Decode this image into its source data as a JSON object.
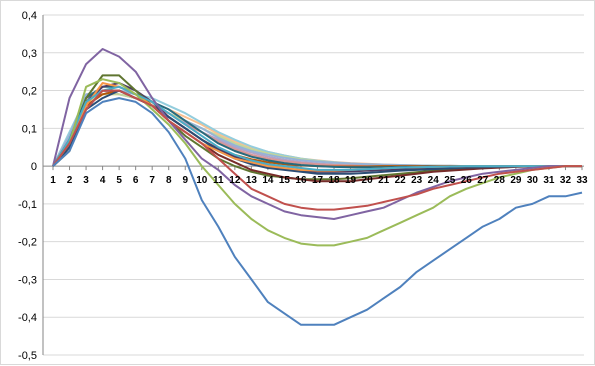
{
  "chart_data": {
    "type": "line",
    "title": "",
    "xlabel": "",
    "ylabel": "",
    "ylim": [
      -0.5,
      0.4
    ],
    "y_tick_step": 0.1,
    "y_tick_labels": [
      "0,4",
      "0,3",
      "0,2",
      "0,1",
      "0",
      "-0,1",
      "-0,2",
      "-0,3",
      "-0,4",
      "-0,5"
    ],
    "x": [
      1,
      2,
      3,
      4,
      5,
      6,
      7,
      8,
      9,
      10,
      11,
      12,
      13,
      14,
      15,
      16,
      17,
      18,
      19,
      20,
      21,
      22,
      23,
      24,
      25,
      26,
      27,
      28,
      29,
      30,
      31,
      32,
      33
    ],
    "x_tick_labels": [
      "1",
      "2",
      "3",
      "4",
      "5",
      "6",
      "7",
      "8",
      "9",
      "10",
      "11",
      "12",
      "13",
      "14",
      "15",
      "16",
      "17",
      "18",
      "19",
      "20",
      "21",
      "22",
      "23",
      "24",
      "25",
      "26",
      "27",
      "28",
      "29",
      "30",
      "31",
      "32",
      "33"
    ],
    "grid": "horizontal",
    "legend": "none",
    "series": [
      {
        "color": "#4f81bd",
        "values": [
          0,
          0.04,
          0.14,
          0.17,
          0.18,
          0.17,
          0.14,
          0.09,
          0.02,
          -0.09,
          -0.16,
          -0.24,
          -0.3,
          -0.36,
          -0.39,
          -0.42,
          -0.42,
          -0.42,
          -0.4,
          -0.38,
          -0.35,
          -0.32,
          -0.28,
          -0.25,
          -0.22,
          -0.19,
          -0.16,
          -0.14,
          -0.11,
          -0.1,
          -0.08,
          -0.08,
          -0.07
        ]
      },
      {
        "color": "#c0504d",
        "values": [
          0,
          0.06,
          0.15,
          0.2,
          0.2,
          0.18,
          0.16,
          0.12,
          0.09,
          0.06,
          0.02,
          -0.02,
          -0.06,
          -0.08,
          -0.1,
          -0.11,
          -0.115,
          -0.115,
          -0.11,
          -0.105,
          -0.095,
          -0.085,
          -0.075,
          -0.06,
          -0.05,
          -0.04,
          -0.03,
          -0.02,
          -0.015,
          -0.01,
          -0.005,
          0,
          0
        ]
      },
      {
        "color": "#9bbb59",
        "values": [
          0,
          0.06,
          0.21,
          0.23,
          0.22,
          0.19,
          0.15,
          0.11,
          0.06,
          0.0,
          -0.05,
          -0.1,
          -0.14,
          -0.17,
          -0.19,
          -0.205,
          -0.21,
          -0.21,
          -0.2,
          -0.19,
          -0.17,
          -0.15,
          -0.13,
          -0.11,
          -0.08,
          -0.06,
          -0.045,
          -0.03,
          -0.02,
          -0.01,
          -0.005,
          0,
          0
        ]
      },
      {
        "color": "#8064a2",
        "values": [
          0,
          0.18,
          0.27,
          0.31,
          0.29,
          0.25,
          0.18,
          0.12,
          0.07,
          0.02,
          -0.01,
          -0.05,
          -0.08,
          -0.1,
          -0.12,
          -0.13,
          -0.135,
          -0.14,
          -0.13,
          -0.12,
          -0.11,
          -0.09,
          -0.07,
          -0.055,
          -0.04,
          -0.03,
          -0.02,
          -0.015,
          -0.01,
          -0.005,
          0,
          0,
          0
        ]
      },
      {
        "color": "#4bacc6",
        "values": [
          0,
          0.07,
          0.17,
          0.2,
          0.21,
          0.19,
          0.17,
          0.14,
          0.11,
          0.08,
          0.05,
          0.03,
          0.015,
          0.005,
          0,
          -0.005,
          -0.01,
          -0.01,
          -0.01,
          -0.008,
          -0.006,
          -0.004,
          -0.003,
          -0.002,
          -0.001,
          0,
          0,
          0,
          0,
          0,
          0,
          0,
          0
        ]
      },
      {
        "color": "#f79646",
        "values": [
          0,
          0.06,
          0.16,
          0.22,
          0.21,
          0.19,
          0.16,
          0.12,
          0.09,
          0.06,
          0.04,
          0.02,
          0.01,
          0,
          -0.005,
          -0.01,
          -0.012,
          -0.012,
          -0.01,
          -0.008,
          -0.006,
          -0.004,
          -0.003,
          -0.002,
          -0.001,
          0,
          0,
          0,
          0,
          0,
          0,
          0,
          0
        ]
      },
      {
        "color": "#2c4d75",
        "values": [
          0,
          0.05,
          0.15,
          0.18,
          0.2,
          0.18,
          0.16,
          0.13,
          0.1,
          0.07,
          0.04,
          0.02,
          0.005,
          -0.005,
          -0.01,
          -0.015,
          -0.02,
          -0.02,
          -0.02,
          -0.018,
          -0.015,
          -0.012,
          -0.01,
          -0.008,
          -0.006,
          -0.004,
          -0.003,
          -0.002,
          -0.001,
          0,
          0,
          0,
          0
        ]
      },
      {
        "color": "#772c2a",
        "values": [
          0,
          0.05,
          0.15,
          0.2,
          0.2,
          0.18,
          0.16,
          0.12,
          0.09,
          0.06,
          0.03,
          0.01,
          -0.01,
          -0.02,
          -0.03,
          -0.035,
          -0.04,
          -0.04,
          -0.04,
          -0.035,
          -0.03,
          -0.025,
          -0.02,
          -0.015,
          -0.012,
          -0.009,
          -0.006,
          -0.004,
          -0.002,
          -0.001,
          0,
          0,
          0
        ]
      },
      {
        "color": "#5f7530",
        "values": [
          0,
          0.04,
          0.18,
          0.24,
          0.24,
          0.2,
          0.16,
          0.12,
          0.08,
          0.05,
          0.02,
          0,
          -0.015,
          -0.025,
          -0.03,
          -0.035,
          -0.035,
          -0.035,
          -0.032,
          -0.028,
          -0.024,
          -0.02,
          -0.016,
          -0.012,
          -0.009,
          -0.006,
          -0.004,
          -0.002,
          -0.001,
          0,
          0,
          0,
          0
        ]
      },
      {
        "color": "#4d3b62",
        "values": [
          0,
          0.06,
          0.17,
          0.21,
          0.22,
          0.2,
          0.17,
          0.13,
          0.1,
          0.07,
          0.045,
          0.025,
          0.01,
          0,
          -0.008,
          -0.012,
          -0.015,
          -0.015,
          -0.014,
          -0.012,
          -0.01,
          -0.008,
          -0.006,
          -0.004,
          -0.003,
          -0.002,
          -0.001,
          0,
          0,
          0,
          0,
          0,
          0
        ]
      },
      {
        "color": "#276a7c",
        "values": [
          0,
          0.07,
          0.18,
          0.21,
          0.21,
          0.19,
          0.17,
          0.15,
          0.12,
          0.09,
          0.06,
          0.04,
          0.025,
          0.015,
          0.008,
          0.003,
          0,
          -0.002,
          -0.003,
          -0.003,
          -0.003,
          -0.002,
          -0.002,
          -0.001,
          -0.001,
          0,
          0,
          0,
          0,
          0,
          0,
          0,
          0
        ]
      },
      {
        "color": "#b65708",
        "values": [
          0,
          0.07,
          0.16,
          0.19,
          0.2,
          0.18,
          0.16,
          0.13,
          0.1,
          0.07,
          0.045,
          0.03,
          0.018,
          0.01,
          0.005,
          0.002,
          0,
          -0.001,
          -0.001,
          -0.001,
          0,
          0,
          0,
          0,
          0,
          0,
          0,
          0,
          0,
          0,
          0,
          0,
          0
        ]
      },
      {
        "color": "#95b3d7",
        "values": [
          0,
          0.08,
          0.19,
          0.2,
          0.2,
          0.19,
          0.17,
          0.15,
          0.12,
          0.1,
          0.075,
          0.055,
          0.04,
          0.03,
          0.022,
          0.016,
          0.012,
          0.009,
          0.007,
          0.005,
          0.004,
          0.003,
          0.002,
          0.001,
          0.001,
          0,
          0,
          0,
          0,
          0,
          0,
          0,
          0
        ]
      },
      {
        "color": "#d99694",
        "values": [
          0,
          0.08,
          0.18,
          0.2,
          0.2,
          0.18,
          0.16,
          0.14,
          0.11,
          0.09,
          0.065,
          0.045,
          0.03,
          0.02,
          0.013,
          0.008,
          0.005,
          0.003,
          0.002,
          0.001,
          0.001,
          0,
          0,
          0,
          0,
          0,
          0,
          0,
          0,
          0,
          0,
          0,
          0
        ]
      },
      {
        "color": "#c3d69b",
        "values": [
          0,
          0.07,
          0.17,
          0.19,
          0.19,
          0.18,
          0.16,
          0.14,
          0.12,
          0.1,
          0.08,
          0.06,
          0.045,
          0.034,
          0.025,
          0.018,
          0.013,
          0.009,
          0.006,
          0.004,
          0.003,
          0.002,
          0.001,
          0.001,
          0,
          0,
          0,
          0,
          0,
          0,
          0,
          0,
          0
        ]
      },
      {
        "color": "#b3a2c7",
        "values": [
          0,
          0.08,
          0.17,
          0.2,
          0.19,
          0.18,
          0.16,
          0.14,
          0.115,
          0.09,
          0.07,
          0.05,
          0.036,
          0.025,
          0.017,
          0.011,
          0.007,
          0.004,
          0.002,
          0.001,
          0,
          0,
          0,
          0,
          0,
          0,
          0,
          0,
          0,
          0,
          0,
          0,
          0
        ]
      },
      {
        "color": "#93cddd",
        "values": [
          0,
          0.09,
          0.18,
          0.2,
          0.2,
          0.19,
          0.18,
          0.16,
          0.14,
          0.115,
          0.09,
          0.07,
          0.052,
          0.038,
          0.028,
          0.02,
          0.014,
          0.01,
          0.007,
          0.005,
          0.003,
          0.002,
          0.001,
          0.001,
          0,
          0,
          0,
          0,
          0,
          0,
          0,
          0,
          0
        ]
      },
      {
        "color": "#fac08f",
        "values": [
          0,
          0.08,
          0.17,
          0.19,
          0.19,
          0.18,
          0.17,
          0.15,
          0.13,
          0.11,
          0.085,
          0.065,
          0.05,
          0.038,
          0.028,
          0.02,
          0.015,
          0.011,
          0.008,
          0.006,
          0.004,
          0.003,
          0.002,
          0.001,
          0.001,
          0,
          0,
          0,
          0,
          0,
          0,
          0,
          0
        ]
      }
    ]
  }
}
